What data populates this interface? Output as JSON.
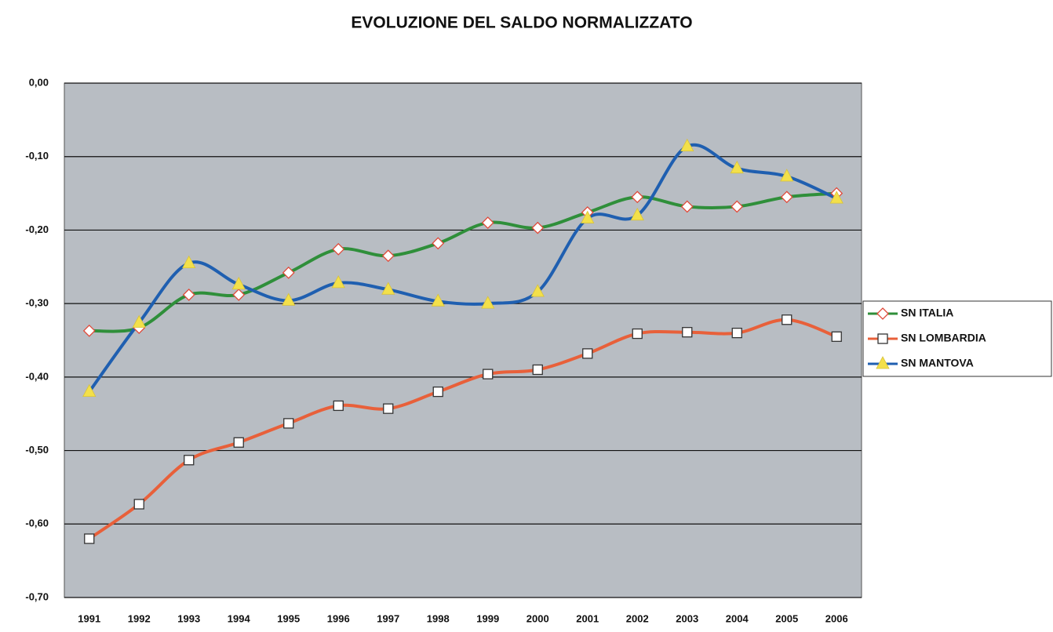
{
  "chart_data": {
    "type": "line",
    "title": "EVOLUZIONE DEL SALDO NORMALIZZATO",
    "categories": [
      "1991",
      "1992",
      "1993",
      "1994",
      "1995",
      "1996",
      "1997",
      "1998",
      "1999",
      "2000",
      "2001",
      "2002",
      "2003",
      "2004",
      "2005",
      "2006"
    ],
    "ylim": [
      -0.7,
      0
    ],
    "yticks": [
      {
        "value": 0,
        "label": "0,00"
      },
      {
        "value": -0.1,
        "label": "-0,10"
      },
      {
        "value": -0.2,
        "label": "-0,20"
      },
      {
        "value": -0.3,
        "label": "-0,30"
      },
      {
        "value": -0.4,
        "label": "-0,40"
      },
      {
        "value": -0.5,
        "label": "-0,50"
      },
      {
        "value": -0.6,
        "label": "-0,60"
      },
      {
        "value": -0.7,
        "label": "-0,70"
      }
    ],
    "grid": true,
    "legend": "right",
    "smooth": true,
    "series": [
      {
        "name": "SN ITALIA",
        "color": "#2f8f3a",
        "marker": "diamond",
        "marker_color": "#e04a3a",
        "values": [
          -0.337,
          -0.333,
          -0.288,
          -0.288,
          -0.258,
          -0.226,
          -0.235,
          -0.218,
          -0.19,
          -0.197,
          -0.176,
          -0.155,
          -0.168,
          -0.168,
          -0.155,
          -0.15
        ]
      },
      {
        "name": "SN LOMBARDIA",
        "color": "#e8603a",
        "marker": "square",
        "marker_color": "#333333",
        "values": [
          -0.62,
          -0.573,
          -0.513,
          -0.489,
          -0.463,
          -0.439,
          -0.443,
          -0.42,
          -0.396,
          -0.39,
          -0.368,
          -0.341,
          -0.339,
          -0.34,
          -0.322,
          -0.345
        ]
      },
      {
        "name": "SN MANTOVA",
        "color": "#1f5fb0",
        "marker": "triangle",
        "marker_color": "#f3e04a",
        "values": [
          -0.42,
          -0.326,
          -0.245,
          -0.274,
          -0.296,
          -0.272,
          -0.281,
          -0.297,
          -0.3,
          -0.284,
          -0.184,
          -0.18,
          -0.086,
          -0.116,
          -0.127,
          -0.157
        ]
      }
    ]
  }
}
